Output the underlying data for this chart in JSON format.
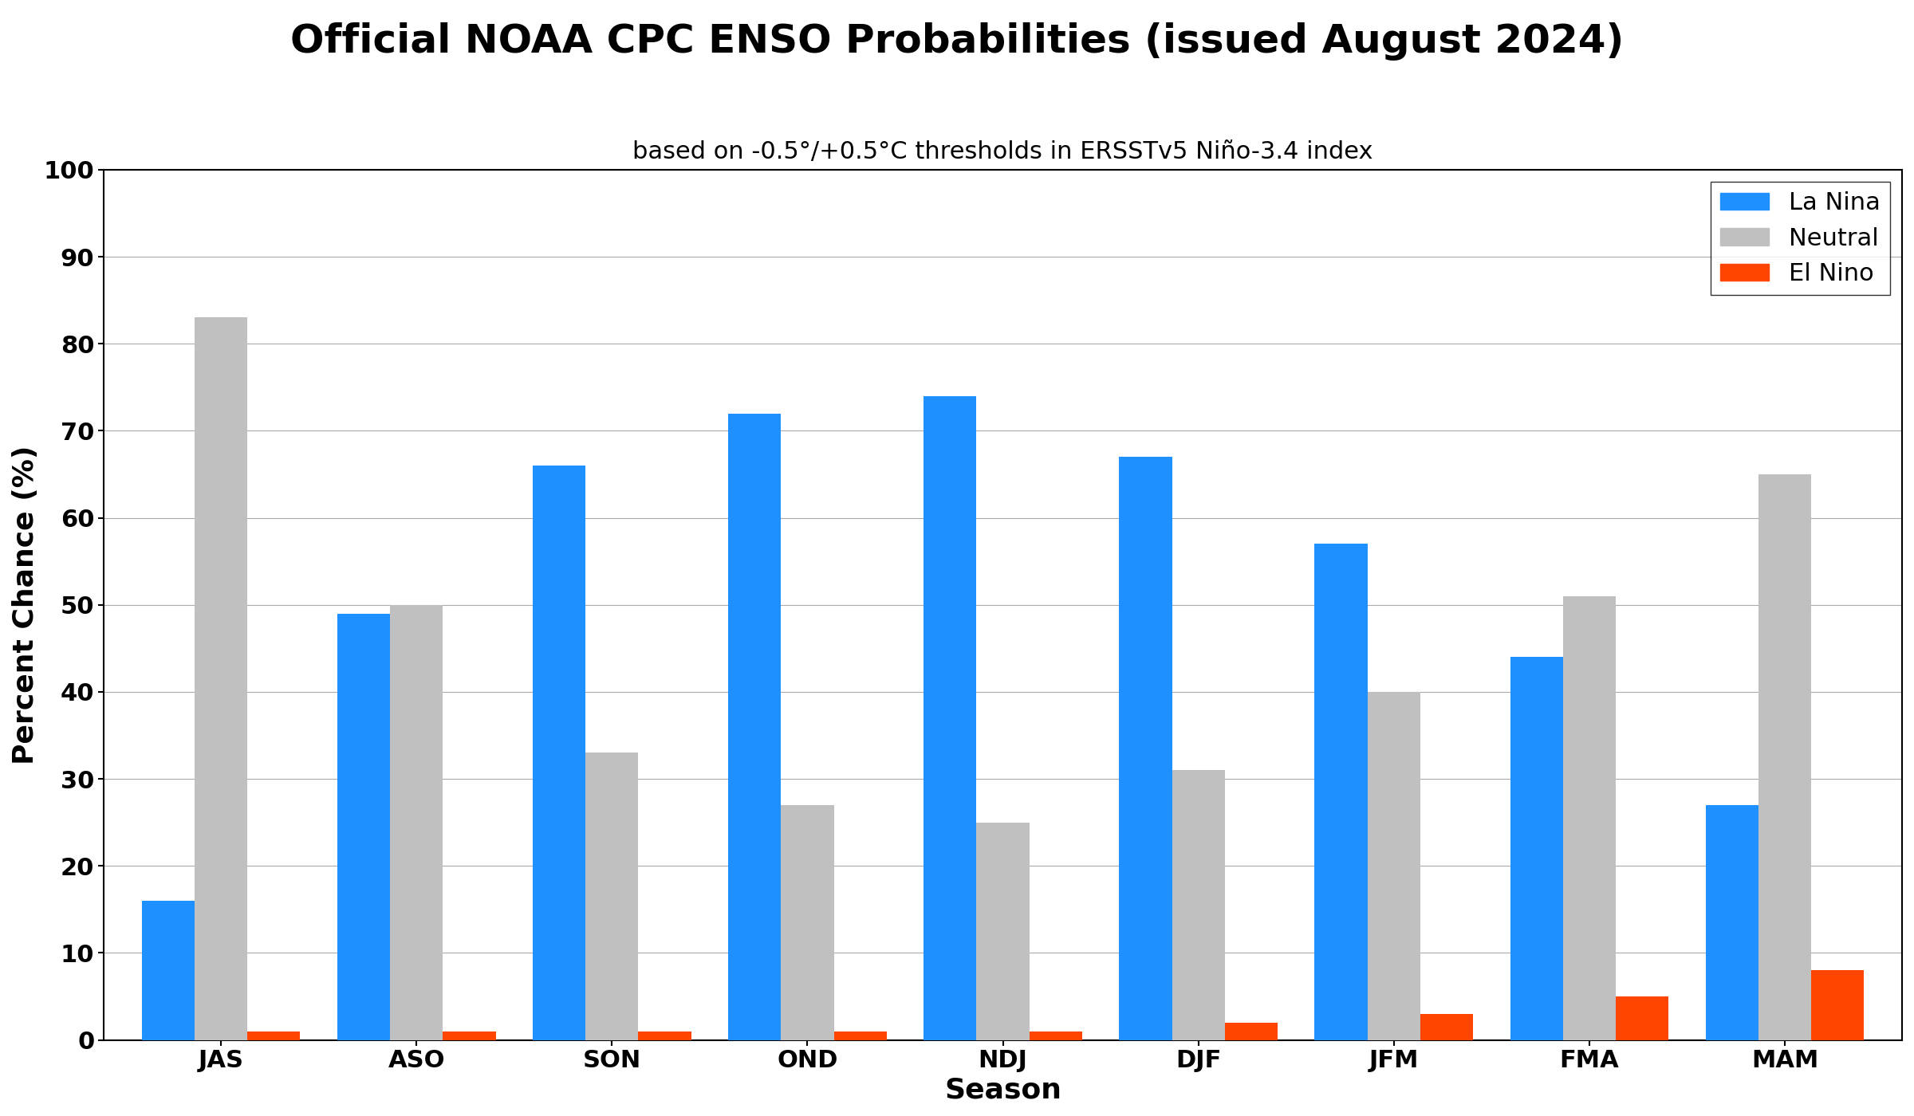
{
  "title": "Official NOAA CPC ENSO Probabilities (issued August 2024)",
  "subtitle": "based on -0.5°/+0.5°C thresholds in ERSSTv5 Niño-3.4 index",
  "xlabel": "Season",
  "ylabel": "Percent Chance (%)",
  "seasons": [
    "JAS",
    "ASO",
    "SON",
    "OND",
    "NDJ",
    "DJF",
    "JFM",
    "FMA",
    "MAM"
  ],
  "la_nina": [
    16,
    49,
    66,
    72,
    74,
    67,
    57,
    44,
    27
  ],
  "neutral": [
    83,
    50,
    33,
    27,
    25,
    31,
    40,
    51,
    65
  ],
  "el_nino": [
    1,
    1,
    1,
    1,
    1,
    2,
    3,
    5,
    8
  ],
  "la_nina_color": "#1E90FF",
  "neutral_color": "#C0C0C0",
  "el_nino_color": "#FF4500",
  "ylim": [
    0,
    100
  ],
  "yticks": [
    0,
    10,
    20,
    30,
    40,
    50,
    60,
    70,
    80,
    90,
    100
  ],
  "title_fontsize": 36,
  "subtitle_fontsize": 22,
  "axis_label_fontsize": 26,
  "tick_fontsize": 22,
  "legend_fontsize": 22,
  "bar_width": 0.27,
  "background_color": "#ffffff",
  "grid_color": "#aaaaaa"
}
